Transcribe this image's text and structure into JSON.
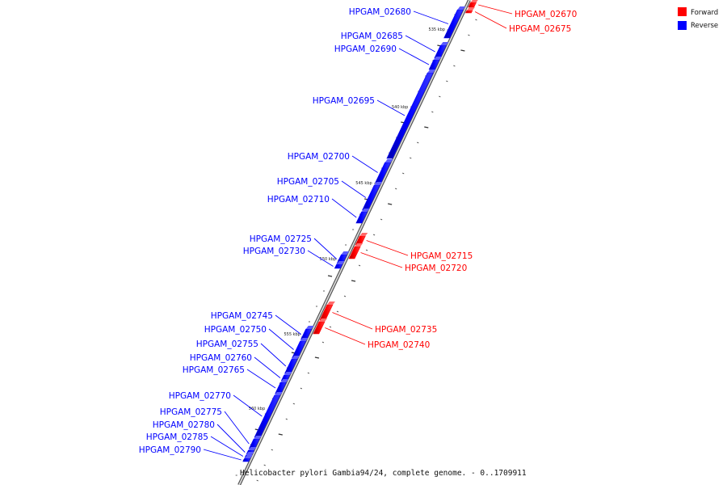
{
  "legend": {
    "forward": {
      "label": "Forward",
      "color": "#ff0000"
    },
    "reverse": {
      "label": "Reverse",
      "color": "#0000ff"
    }
  },
  "caption": "Helicobacter pylori Gambia94/24, complete genome. - 0..1709911",
  "scale_labels": [
    "535 kbp",
    "540 kbp",
    "545 kbp",
    "550 kbp",
    "555 kbp",
    "560 kbp"
  ],
  "genes": {
    "forward": [
      "HPGAM_02670",
      "HPGAM_02675",
      "HPGAM_02715",
      "HPGAM_02720",
      "HPGAM_02735",
      "HPGAM_02740"
    ],
    "reverse": [
      "HPGAM_02680",
      "HPGAM_02685",
      "HPGAM_02690",
      "HPGAM_02695",
      "HPGAM_02700",
      "HPGAM_02705",
      "HPGAM_02710",
      "HPGAM_02725",
      "HPGAM_02730",
      "HPGAM_02745",
      "HPGAM_02750",
      "HPGAM_02755",
      "HPGAM_02760",
      "HPGAM_02765",
      "HPGAM_02770",
      "HPGAM_02775",
      "HPGAM_02780",
      "HPGAM_02785",
      "HPGAM_02790"
    ]
  }
}
